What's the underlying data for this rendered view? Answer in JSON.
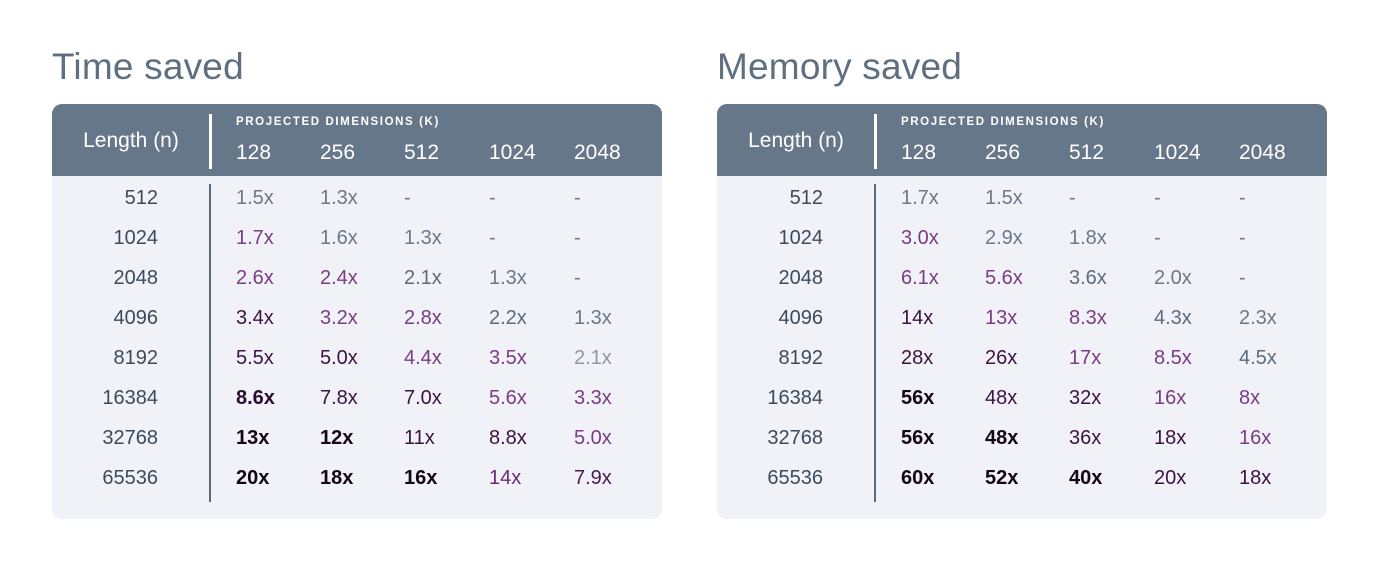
{
  "chart_data": [
    {
      "type": "table",
      "title": "Time saved",
      "row_header": "Length (n)",
      "column_group_label": "PROJECTED DIMENSIONS (K)",
      "columns": [
        "128",
        "256",
        "512",
        "1024",
        "2048"
      ],
      "rows": [
        "512",
        "1024",
        "2048",
        "4096",
        "8192",
        "16384",
        "32768",
        "65536"
      ],
      "cells": [
        [
          "1.5x",
          "1.3x",
          "-",
          "-",
          "-"
        ],
        [
          "1.7x",
          "1.6x",
          "1.3x",
          "-",
          "-"
        ],
        [
          "2.6x",
          "2.4x",
          "2.1x",
          "1.3x",
          "-"
        ],
        [
          "3.4x",
          "3.2x",
          "2.8x",
          "2.2x",
          "1.3x"
        ],
        [
          "5.5x",
          "5.0x",
          "4.4x",
          "3.5x",
          "2.1x"
        ],
        [
          "8.6x",
          "7.8x",
          "7.0x",
          "5.6x",
          "3.3x"
        ],
        [
          "13x",
          "12x",
          "11x",
          "8.8x",
          "5.0x"
        ],
        [
          "20x",
          "18x",
          "16x",
          "14x",
          "7.9x"
        ]
      ],
      "cell_colors": [
        [
          "#6b7887",
          "#6b7887",
          "#6b7887",
          "#6b7887",
          "#6b7887"
        ],
        [
          "#7a3c82",
          "#6b7887",
          "#6b7887",
          "#6b7887",
          "#6b7887"
        ],
        [
          "#7a3c82",
          "#7a3c82",
          "#5c6b7c",
          "#6b7887",
          "#6b7887"
        ],
        [
          "#3b1340",
          "#7a3c82",
          "#7a3c82",
          "#5c6b7c",
          "#6b7887"
        ],
        [
          "#3b1340",
          "#3b1340",
          "#7a3c82",
          "#7a3c82",
          "#8e97a5"
        ],
        [
          "#2a0c2e",
          "#3b1340",
          "#3b1340",
          "#7a3c82",
          "#7a3c82"
        ],
        [
          "#150616",
          "#150616",
          "#3b1340",
          "#3b1340",
          "#7a3c82"
        ],
        [
          "#150616",
          "#150616",
          "#150616",
          "#6a2b72",
          "#4a1a50"
        ]
      ],
      "cell_bold": [
        [
          false,
          false,
          false,
          false,
          false
        ],
        [
          false,
          false,
          false,
          false,
          false
        ],
        [
          false,
          false,
          false,
          false,
          false
        ],
        [
          false,
          false,
          false,
          false,
          false
        ],
        [
          false,
          false,
          false,
          false,
          false
        ],
        [
          true,
          false,
          false,
          false,
          false
        ],
        [
          true,
          true,
          false,
          false,
          false
        ],
        [
          true,
          true,
          true,
          false,
          false
        ]
      ]
    },
    {
      "type": "table",
      "title": "Memory saved",
      "row_header": "Length (n)",
      "column_group_label": "PROJECTED DIMENSIONS (K)",
      "columns": [
        "128",
        "256",
        "512",
        "1024",
        "2048"
      ],
      "rows": [
        "512",
        "1024",
        "2048",
        "4096",
        "8192",
        "16384",
        "32768",
        "65536"
      ],
      "cells": [
        [
          "1.7x",
          "1.5x",
          "-",
          "-",
          "-"
        ],
        [
          "3.0x",
          "2.9x",
          "1.8x",
          "-",
          "-"
        ],
        [
          "6.1x",
          "5.6x",
          "3.6x",
          "2.0x",
          "-"
        ],
        [
          "14x",
          "13x",
          "8.3x",
          "4.3x",
          "2.3x"
        ],
        [
          "28x",
          "26x",
          "17x",
          "8.5x",
          "4.5x"
        ],
        [
          "56x",
          "48x",
          "32x",
          "16x",
          "8x"
        ],
        [
          "56x",
          "48x",
          "36x",
          "18x",
          "16x"
        ],
        [
          "60x",
          "52x",
          "40x",
          "20x",
          "18x"
        ]
      ],
      "cell_colors": [
        [
          "#6b7887",
          "#6b7887",
          "#6b7887",
          "#6b7887",
          "#6b7887"
        ],
        [
          "#7a3c82",
          "#6b7887",
          "#6b7887",
          "#6b7887",
          "#6b7887"
        ],
        [
          "#7a3c82",
          "#7a3c82",
          "#5c6b7c",
          "#6b7887",
          "#6b7887"
        ],
        [
          "#3b1340",
          "#7a3c82",
          "#7a3c82",
          "#5c6b7c",
          "#6b7887"
        ],
        [
          "#3b1340",
          "#3b1340",
          "#7a3c82",
          "#7a3c82",
          "#5c6b7c"
        ],
        [
          "#150616",
          "#3b1340",
          "#3b1340",
          "#7a3c82",
          "#7a3c82"
        ],
        [
          "#150616",
          "#150616",
          "#3b1340",
          "#3b1340",
          "#7a3c82"
        ],
        [
          "#150616",
          "#150616",
          "#150616",
          "#3b1340",
          "#3b1340"
        ]
      ],
      "cell_bold": [
        [
          false,
          false,
          false,
          false,
          false
        ],
        [
          false,
          false,
          false,
          false,
          false
        ],
        [
          false,
          false,
          false,
          false,
          false
        ],
        [
          false,
          false,
          false,
          false,
          false
        ],
        [
          false,
          false,
          false,
          false,
          false
        ],
        [
          true,
          false,
          false,
          false,
          false
        ],
        [
          true,
          true,
          false,
          false,
          false
        ],
        [
          true,
          true,
          true,
          false,
          false
        ]
      ]
    }
  ]
}
